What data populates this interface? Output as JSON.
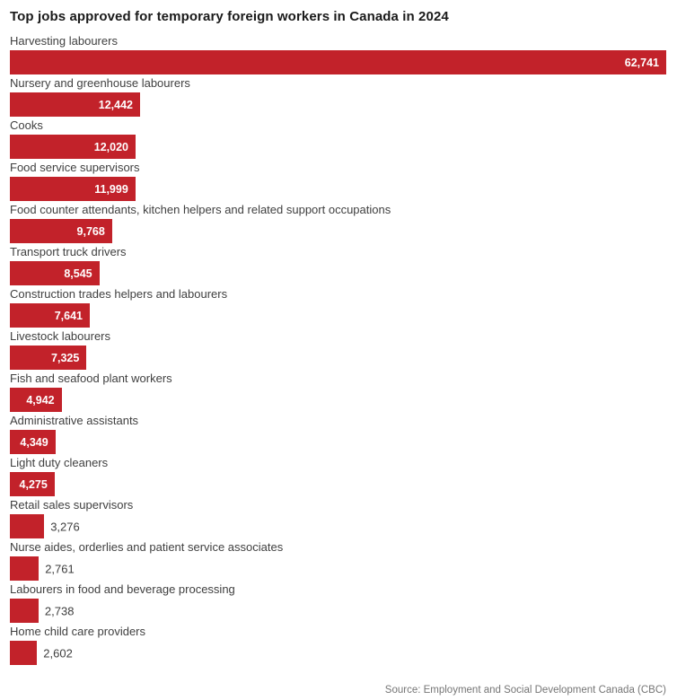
{
  "title": "Top jobs approved for temporary foreign workers in Canada in 2024",
  "source": "Source: Employment and Social Development Canada (CBC)",
  "colors": {
    "bar": "#c2222a",
    "title": "#1a1a1a",
    "category_label": "#404040",
    "value_inside": "#ffffff",
    "value_outside": "#3f3f3f",
    "source": "#757575",
    "background": "#ffffff"
  },
  "chart_data": {
    "type": "bar",
    "orientation": "horizontal",
    "title": "Top jobs approved for temporary foreign workers in Canada in 2024",
    "xlabel": "",
    "ylabel": "",
    "grid": false,
    "legend": false,
    "axis_range": [
      0,
      62741
    ],
    "max_value": 62741,
    "categories": [
      "Harvesting labourers",
      "Nursery and greenhouse labourers",
      "Cooks",
      "Food service supervisors",
      "Food counter attendants, kitchen helpers and related support occupations",
      "Transport truck drivers",
      "Construction trades helpers and labourers",
      "Livestock labourers",
      "Fish and seafood plant workers",
      "Administrative assistants",
      "Light duty cleaners",
      "Retail sales supervisors",
      "Nurse aides, orderlies and patient service associates",
      "Labourers in food and beverage processing",
      "Home child care providers"
    ],
    "values": [
      62741,
      12442,
      12020,
      11999,
      9768,
      8545,
      7641,
      7325,
      4942,
      4349,
      4275,
      3276,
      2761,
      2738,
      2602
    ],
    "value_labels": [
      "62,741",
      "12,442",
      "12,020",
      "11,999",
      "9,768",
      "8,545",
      "7,641",
      "7,325",
      "4,942",
      "4,349",
      "4,275",
      "3,276",
      "2,761",
      "2,738",
      "2,602"
    ]
  }
}
